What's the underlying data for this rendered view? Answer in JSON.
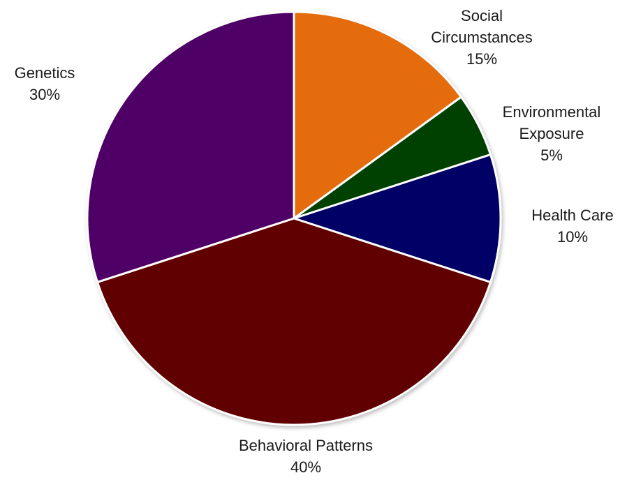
{
  "chart_data": {
    "type": "pie",
    "title": "",
    "start_angle_deg": 0,
    "direction": "clockwise",
    "slices": [
      {
        "label_lines": [
          "Social",
          "Circumstances"
        ],
        "percent_label": "15%",
        "value": 15,
        "color": "#E46C0A"
      },
      {
        "label_lines": [
          "Environmental",
          "Exposure"
        ],
        "percent_label": "5%",
        "value": 5,
        "color": "#004000"
      },
      {
        "label_lines": [
          "Health Care"
        ],
        "percent_label": "10%",
        "value": 10,
        "color": "#000066"
      },
      {
        "label_lines": [
          "Behavioral Patterns"
        ],
        "percent_label": "40%",
        "value": 40,
        "color": "#600000"
      },
      {
        "label_lines": [
          "Genetics"
        ],
        "percent_label": "30%",
        "value": 30,
        "color": "#4F0066"
      }
    ],
    "slice_border_color": "#FFFFFF",
    "legend": "none"
  }
}
